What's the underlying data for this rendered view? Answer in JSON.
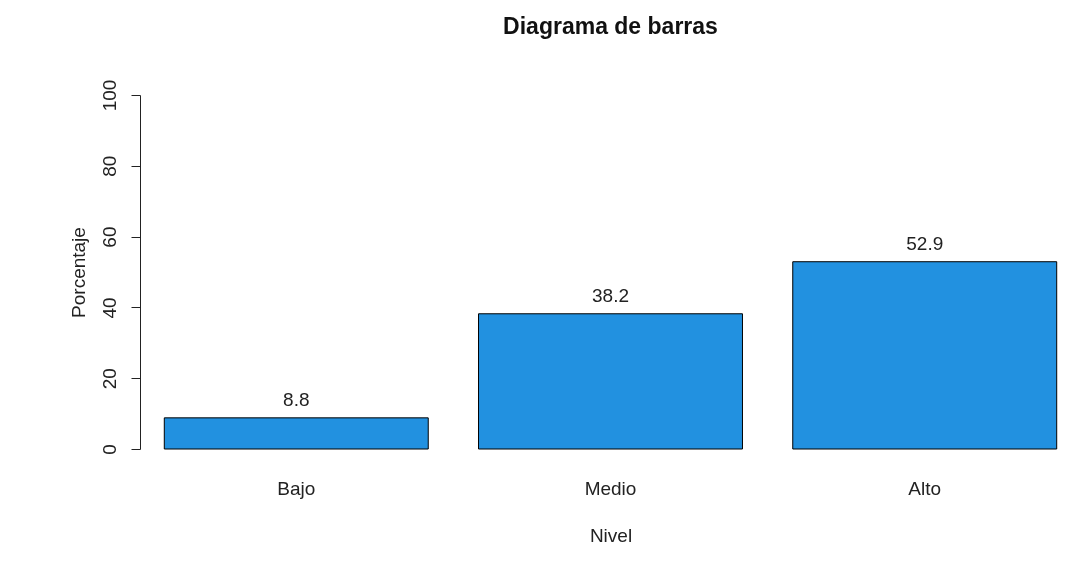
{
  "chart_data": {
    "type": "bar",
    "title": "Diagrama de barras",
    "xlabel": "Nivel",
    "ylabel": "Porcentaje",
    "categories": [
      "Bajo",
      "Medio",
      "Alto"
    ],
    "values": [
      8.8,
      38.2,
      52.9
    ],
    "color": "#2291e0",
    "ylim": [
      0,
      100
    ],
    "yticks": [
      0,
      20,
      40,
      60,
      80,
      100
    ],
    "grid": false,
    "data_labels": true
  }
}
